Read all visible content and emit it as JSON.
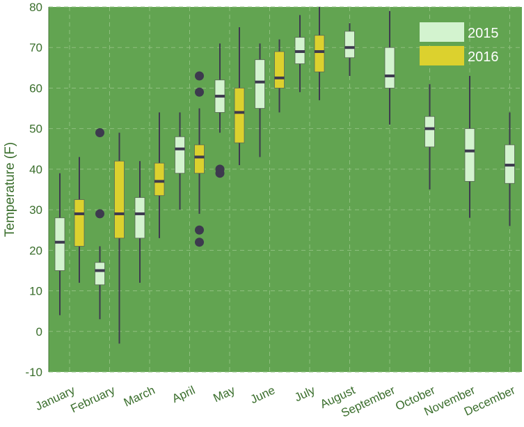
{
  "chart_data": {
    "type": "box",
    "ylabel": "Temperature (F)",
    "xlabel": "",
    "ylim": [
      -10,
      80
    ],
    "yticks": [
      -10,
      0,
      10,
      20,
      30,
      40,
      50,
      60,
      70,
      80
    ],
    "grid": true,
    "legend_position": "top-right",
    "categories": [
      "January",
      "February",
      "March",
      "April",
      "May",
      "June",
      "July",
      "August",
      "September",
      "October",
      "November",
      "December"
    ],
    "series": [
      {
        "name": "2015",
        "color": "#d3f3cf",
        "boxes": [
          {
            "category": "January",
            "whisker_low": 4,
            "q1": 15,
            "median": 22,
            "q3": 28,
            "whisker_high": 39,
            "outliers": []
          },
          {
            "category": "February",
            "whisker_low": 3,
            "q1": 11.5,
            "median": 15,
            "q3": 17,
            "whisker_high": 21,
            "outliers": [
              49,
              29
            ]
          },
          {
            "category": "March",
            "whisker_low": 12,
            "q1": 23,
            "median": 29,
            "q3": 33,
            "whisker_high": 42,
            "outliers": []
          },
          {
            "category": "April",
            "whisker_low": 30,
            "q1": 39,
            "median": 45,
            "q3": 48,
            "whisker_high": 54,
            "outliers": []
          },
          {
            "category": "May",
            "whisker_low": 49,
            "q1": 54,
            "median": 58,
            "q3": 62,
            "whisker_high": 71,
            "outliers": [
              40,
              39
            ]
          },
          {
            "category": "June",
            "whisker_low": 43,
            "q1": 55,
            "median": 61.5,
            "q3": 67,
            "whisker_high": 71,
            "outliers": []
          },
          {
            "category": "July",
            "whisker_low": 59,
            "q1": 66,
            "median": 69,
            "q3": 72.5,
            "whisker_high": 78,
            "outliers": []
          },
          {
            "category": "August",
            "whisker_low": 63,
            "q1": 67.5,
            "median": 70,
            "q3": 74,
            "whisker_high": 76,
            "outliers": []
          },
          {
            "category": "September",
            "whisker_low": 51,
            "q1": 60,
            "median": 63,
            "q3": 70,
            "whisker_high": 79,
            "outliers": []
          },
          {
            "category": "October",
            "whisker_low": 35,
            "q1": 45.5,
            "median": 50,
            "q3": 53,
            "whisker_high": 61,
            "outliers": []
          },
          {
            "category": "November",
            "whisker_low": 28,
            "q1": 37,
            "median": 44.5,
            "q3": 50,
            "whisker_high": 63,
            "outliers": []
          },
          {
            "category": "December",
            "whisker_low": 26,
            "q1": 36.5,
            "median": 41,
            "q3": 46,
            "whisker_high": 54,
            "outliers": []
          }
        ]
      },
      {
        "name": "2016",
        "color": "#dcd12e",
        "boxes": [
          {
            "category": "January",
            "whisker_low": 12,
            "q1": 21,
            "median": 29,
            "q3": 32.5,
            "whisker_high": 43,
            "outliers": []
          },
          {
            "category": "February",
            "whisker_low": -3,
            "q1": 23,
            "median": 29,
            "q3": 42,
            "whisker_high": 49,
            "outliers": []
          },
          {
            "category": "March",
            "whisker_low": 23,
            "q1": 33.5,
            "median": 37,
            "q3": 41.5,
            "whisker_high": 54,
            "outliers": []
          },
          {
            "category": "April",
            "whisker_low": 29,
            "q1": 39,
            "median": 43,
            "q3": 46,
            "whisker_high": 55,
            "outliers": [
              63,
              59,
              25,
              22
            ]
          },
          {
            "category": "May",
            "whisker_low": 41,
            "q1": 46.5,
            "median": 54,
            "q3": 60,
            "whisker_high": 75,
            "outliers": []
          },
          {
            "category": "June",
            "whisker_low": 54,
            "q1": 60,
            "median": 62.5,
            "q3": 69,
            "whisker_high": 72,
            "outliers": []
          },
          {
            "category": "July",
            "whisker_low": 57,
            "q1": 64,
            "median": 69,
            "q3": 73,
            "whisker_high": 80,
            "outliers": []
          }
        ]
      }
    ]
  },
  "colors": {
    "plot_background": "#62a451",
    "grid": "#8fbf80",
    "axis_text": "#3a6e2c",
    "whisker": "#3d3a4e",
    "median": "#3d3a4e",
    "outlier": "#3d3a4e"
  }
}
